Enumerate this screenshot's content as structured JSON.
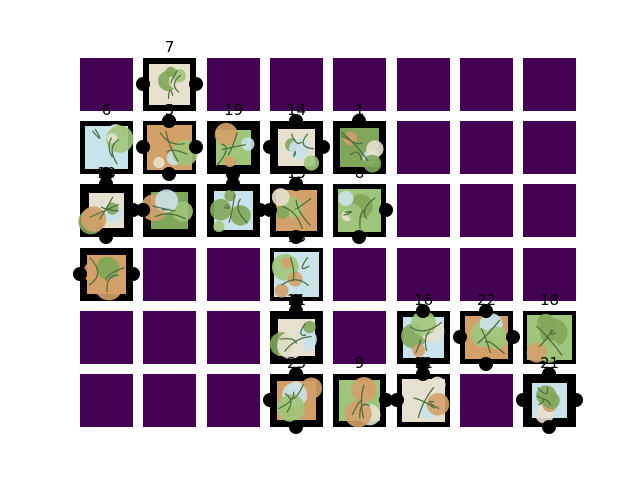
{
  "colors": {
    "empty_cell": "#440154",
    "piece_background": "#000000",
    "piece_art": [
      "#9fc57a",
      "#d4a06a",
      "#c8e3ea",
      "#7fa659",
      "#e6e1cf"
    ]
  },
  "board": {
    "rows": 6,
    "cols": 8,
    "cells": [
      {
        "row": 0,
        "col": 0,
        "label": null
      },
      {
        "row": 0,
        "col": 1,
        "label": "7"
      },
      {
        "row": 0,
        "col": 2,
        "label": null
      },
      {
        "row": 0,
        "col": 3,
        "label": null
      },
      {
        "row": 0,
        "col": 4,
        "label": null
      },
      {
        "row": 0,
        "col": 5,
        "label": null
      },
      {
        "row": 0,
        "col": 6,
        "label": null
      },
      {
        "row": 0,
        "col": 7,
        "label": null
      },
      {
        "row": 1,
        "col": 0,
        "label": "6"
      },
      {
        "row": 1,
        "col": 1,
        "label": "5"
      },
      {
        "row": 1,
        "col": 2,
        "label": "19"
      },
      {
        "row": 1,
        "col": 3,
        "label": "14"
      },
      {
        "row": 1,
        "col": 4,
        "label": "1"
      },
      {
        "row": 1,
        "col": 5,
        "label": null
      },
      {
        "row": 1,
        "col": 6,
        "label": null
      },
      {
        "row": 1,
        "col": 7,
        "label": null
      },
      {
        "row": 2,
        "col": 0,
        "label": "10"
      },
      {
        "row": 2,
        "col": 1,
        "label": "3"
      },
      {
        "row": 2,
        "col": 2,
        "label": "4"
      },
      {
        "row": 2,
        "col": 3,
        "label": "15"
      },
      {
        "row": 2,
        "col": 4,
        "label": "8"
      },
      {
        "row": 2,
        "col": 5,
        "label": null
      },
      {
        "row": 2,
        "col": 6,
        "label": null
      },
      {
        "row": 2,
        "col": 7,
        "label": null
      },
      {
        "row": 3,
        "col": 0,
        "label": "2"
      },
      {
        "row": 3,
        "col": 1,
        "label": null
      },
      {
        "row": 3,
        "col": 2,
        "label": null
      },
      {
        "row": 3,
        "col": 3,
        "label": "13"
      },
      {
        "row": 3,
        "col": 4,
        "label": null
      },
      {
        "row": 3,
        "col": 5,
        "label": null
      },
      {
        "row": 3,
        "col": 6,
        "label": null
      },
      {
        "row": 3,
        "col": 7,
        "label": null
      },
      {
        "row": 4,
        "col": 0,
        "label": null
      },
      {
        "row": 4,
        "col": 1,
        "label": null
      },
      {
        "row": 4,
        "col": 2,
        "label": null
      },
      {
        "row": 4,
        "col": 3,
        "label": "11"
      },
      {
        "row": 4,
        "col": 4,
        "label": null
      },
      {
        "row": 4,
        "col": 5,
        "label": "16"
      },
      {
        "row": 4,
        "col": 6,
        "label": "22"
      },
      {
        "row": 4,
        "col": 7,
        "label": "18"
      },
      {
        "row": 5,
        "col": 0,
        "label": null
      },
      {
        "row": 5,
        "col": 1,
        "label": null
      },
      {
        "row": 5,
        "col": 2,
        "label": null
      },
      {
        "row": 5,
        "col": 3,
        "label": "23"
      },
      {
        "row": 5,
        "col": 4,
        "label": "9"
      },
      {
        "row": 5,
        "col": 5,
        "label": "12"
      },
      {
        "row": 5,
        "col": 6,
        "label": null
      },
      {
        "row": 5,
        "col": 7,
        "label": "21"
      }
    ]
  }
}
